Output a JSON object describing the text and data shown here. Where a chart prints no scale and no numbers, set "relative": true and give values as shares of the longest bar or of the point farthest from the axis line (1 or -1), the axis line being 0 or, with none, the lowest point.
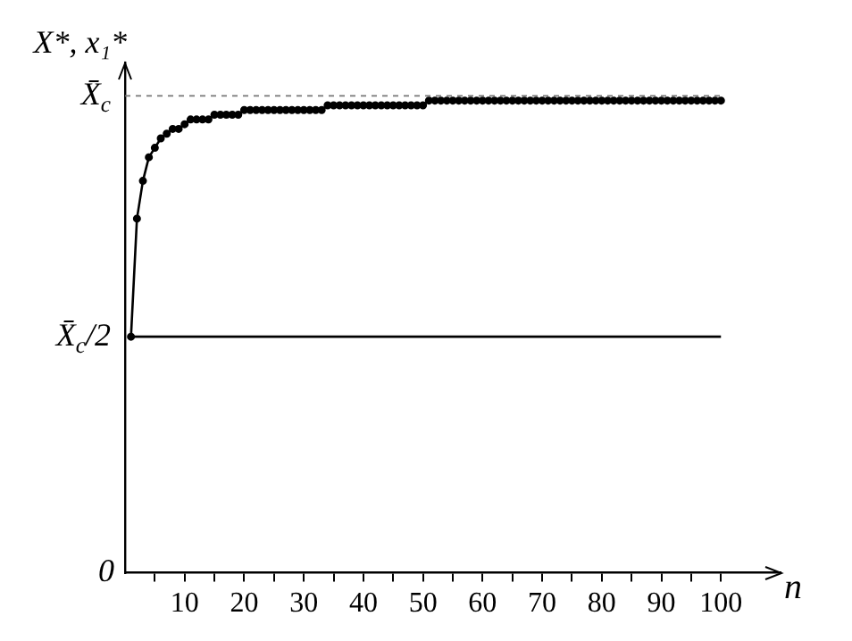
{
  "chart_data": {
    "type": "line",
    "relative": true,
    "xlabel": "n",
    "ylabel": "X*, x₁*",
    "xlim": [
      0,
      110
    ],
    "xticks": [
      {
        "value": 5,
        "label": null
      },
      10,
      {
        "value": 15,
        "label": null
      },
      20,
      {
        "value": 25,
        "label": null
      },
      30,
      {
        "value": 35,
        "label": null
      },
      40,
      {
        "value": 45,
        "label": null
      },
      50,
      {
        "value": 55,
        "label": null
      },
      60,
      {
        "value": 65,
        "label": null
      },
      70,
      {
        "value": 75,
        "label": null
      },
      80,
      {
        "value": 85,
        "label": null
      },
      90,
      {
        "value": 95,
        "label": null
      },
      100
    ],
    "grid": false,
    "legend": false,
    "ref_lines": [
      {
        "axis": "y",
        "value": 1.01,
        "label": "X̄$_{c}$",
        "color": "#777777",
        "line_style": "dashed"
      }
    ],
    "annotations": [
      "0",
      {
        "text": "X̄$_{c}$/2",
        "x": 0,
        "y": 0.5
      }
    ],
    "series": [
      {
        "color": "#000000",
        "marker": "circle",
        "x": [
          1,
          2,
          3,
          4,
          5,
          6,
          7,
          8,
          9,
          10,
          11,
          12,
          13,
          14,
          15,
          16,
          17,
          18,
          19,
          20,
          21,
          22,
          23,
          24,
          25,
          26,
          27,
          28,
          29,
          30,
          31,
          32,
          33,
          34,
          35,
          36,
          37,
          38,
          39,
          40,
          41,
          42,
          43,
          44,
          45,
          46,
          47,
          48,
          49,
          50,
          51,
          52,
          53,
          54,
          55,
          56,
          57,
          58,
          59,
          60,
          61,
          62,
          63,
          64,
          65,
          66,
          67,
          68,
          69,
          70,
          71,
          72,
          73,
          74,
          75,
          76,
          77,
          78,
          79,
          80,
          81,
          82,
          83,
          84,
          85,
          86,
          87,
          88,
          89,
          90,
          91,
          92,
          93,
          94,
          95,
          96,
          97,
          98,
          99,
          100
        ],
        "values": [
          0.5,
          0.75,
          0.83,
          0.88,
          0.9,
          0.92,
          0.93,
          0.94,
          0.94,
          0.95,
          0.96,
          0.96,
          0.96,
          0.96,
          0.97,
          0.97,
          0.97,
          0.97,
          0.97,
          0.98,
          0.98,
          0.98,
          0.98,
          0.98,
          0.98,
          0.98,
          0.98,
          0.98,
          0.98,
          0.98,
          0.98,
          0.98,
          0.98,
          0.99,
          0.99,
          0.99,
          0.99,
          0.99,
          0.99,
          0.99,
          0.99,
          0.99,
          0.99,
          0.99,
          0.99,
          0.99,
          0.99,
          0.99,
          0.99,
          0.99,
          1,
          1,
          1,
          1,
          1,
          1,
          1,
          1,
          1,
          1,
          1,
          1,
          1,
          1,
          1,
          1,
          1,
          1,
          1,
          1,
          1,
          1,
          1,
          1,
          1,
          1,
          1,
          1,
          1,
          1,
          1,
          1,
          1,
          1,
          1,
          1,
          1,
          1,
          1,
          1,
          1,
          1,
          1,
          1,
          1,
          1,
          1,
          1,
          1,
          1
        ]
      },
      {
        "color": "#000000",
        "marker": "none",
        "x": [
          1,
          100
        ],
        "values": [
          0.5,
          0.5
        ]
      }
    ]
  }
}
